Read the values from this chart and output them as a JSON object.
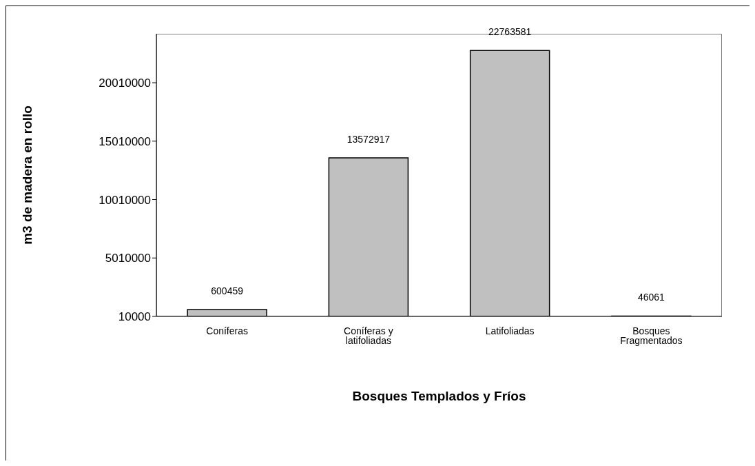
{
  "chart_data": {
    "type": "bar",
    "xlabel": "Bosques Templados y Fríos",
    "ylabel": "m3 de madera en rollo",
    "categories": [
      "Coníferas",
      "Coníferas y latifoliadas",
      "Latifoliadas",
      "Bosques Fragmentados"
    ],
    "values": [
      600459,
      13572917,
      22763581,
      46061
    ],
    "color": "#c0c0c0",
    "ylim": [
      10000,
      24200000
    ],
    "yticks": [
      10000,
      5010000,
      10010000,
      15010000,
      20010000
    ],
    "grid": false,
    "data_labels": true
  }
}
